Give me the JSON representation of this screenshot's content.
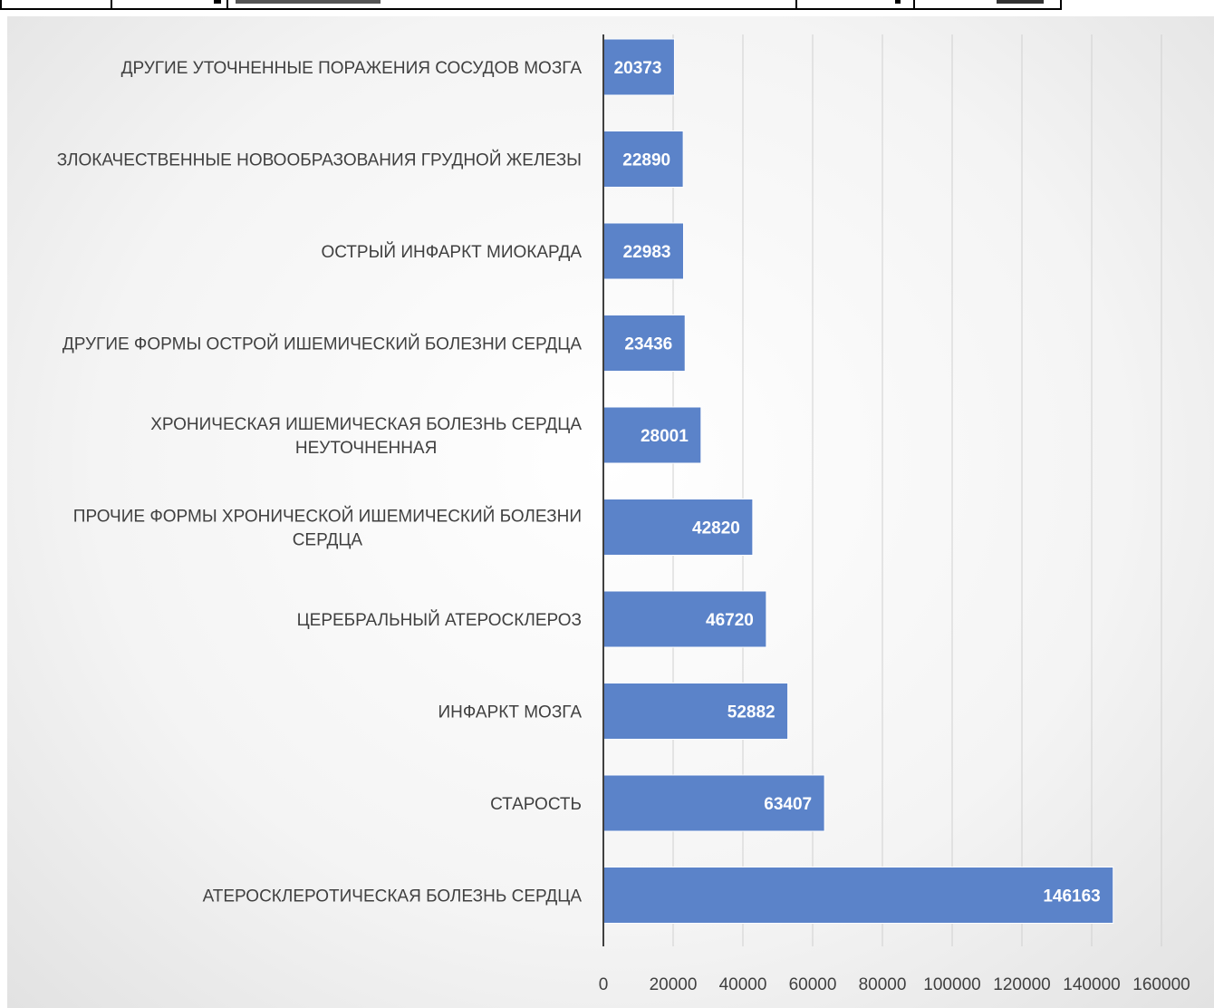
{
  "chart_data": {
    "type": "bar",
    "orientation": "horizontal",
    "categories": [
      "ДРУГИЕ УТОЧНЕННЫЕ ПОРАЖЕНИЯ СОСУДОВ МОЗГА",
      "ЗЛОКАЧЕСТВЕННЫЕ НОВООБРАЗОВАНИЯ ГРУДНОЙ ЖЕЛЕЗЫ",
      "ОСТРЫЙ ИНФАРКТ МИОКАРДА",
      "ДРУГИЕ ФОРМЫ ОСТРОЙ ИШЕМИЧЕСКИЙ БОЛЕЗНИ СЕРДЦА",
      "ХРОНИЧЕСКАЯ ИШЕМИЧЕСКАЯ БОЛЕЗНЬ СЕРДЦА НЕУТОЧНЕННАЯ",
      "ПРОЧИЕ ФОРМЫ ХРОНИЧЕСКОЙ ИШЕМИЧЕСКИЙ БОЛЕЗНИ СЕРДЦА",
      "ЦЕРЕБРАЛЬНЫЙ АТЕРОСКЛЕРОЗ",
      "ИНФАРКТ МОЗГА",
      "СТАРОСТЬ",
      "АТЕРОСКЛЕРОТИЧЕСКАЯ БОЛЕЗНЬ СЕРДЦА"
    ],
    "category_lines": [
      [
        "ДРУГИЕ УТОЧНЕННЫЕ ПОРАЖЕНИЯ СОСУДОВ МОЗГА"
      ],
      [
        "ЗЛОКАЧЕСТВЕННЫЕ НОВООБРАЗОВАНИЯ ГРУДНОЙ ЖЕЛЕЗЫ"
      ],
      [
        "ОСТРЫЙ ИНФАРКТ МИОКАРДА"
      ],
      [
        "ДРУГИЕ ФОРМЫ ОСТРОЙ ИШЕМИЧЕСКИЙ БОЛЕЗНИ СЕРДЦА"
      ],
      [
        "ХРОНИЧЕСКАЯ ИШЕМИЧЕСКАЯ БОЛЕЗНЬ СЕРДЦА",
        "НЕУТОЧНЕННАЯ"
      ],
      [
        "ПРОЧИЕ ФОРМЫ ХРОНИЧЕСКОЙ ИШЕМИЧЕСКИЙ БОЛЕЗНИ",
        "СЕРДЦА"
      ],
      [
        "ЦЕРЕБРАЛЬНЫЙ АТЕРОСКЛЕРОЗ"
      ],
      [
        "ИНФАРКТ МОЗГА"
      ],
      [
        "СТАРОСТЬ"
      ],
      [
        "АТЕРОСКЛЕРОТИЧЕСКАЯ БОЛЕЗНЬ СЕРДЦА"
      ]
    ],
    "values": [
      20373,
      22890,
      22983,
      23436,
      28001,
      42820,
      46720,
      52882,
      63407,
      146163
    ],
    "data_labels": [
      "20373",
      "22890",
      "22983",
      "23436",
      "28001",
      "42820",
      "46720",
      "52882",
      "63407",
      "146163"
    ],
    "xlim": [
      0,
      160000
    ],
    "xticks": [
      0,
      20000,
      40000,
      60000,
      80000,
      100000,
      120000,
      140000,
      160000
    ],
    "xtick_labels": [
      "0",
      "20000",
      "40000",
      "60000",
      "80000",
      "100000",
      "120000",
      "140000",
      "160000"
    ],
    "title": "",
    "xlabel": "",
    "ylabel": "",
    "grid": "vertical",
    "legend": "none",
    "colors": {
      "bar": "#5b83c9",
      "bar_edge": "#ffffff",
      "grid": "#d0d0d0",
      "axis": "#404040",
      "label_text": "#404040",
      "data_label": "#ffffff"
    }
  }
}
